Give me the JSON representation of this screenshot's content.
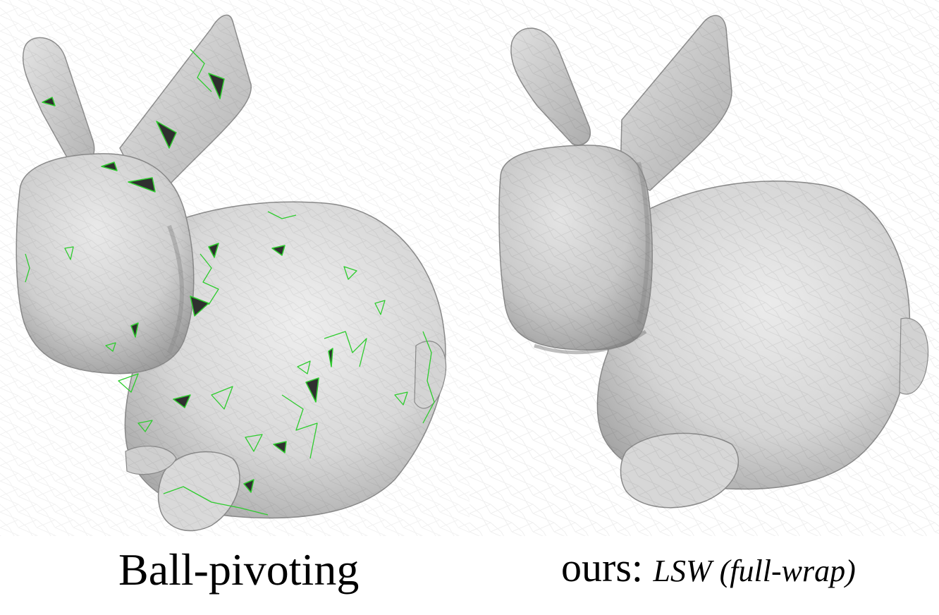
{
  "figure": {
    "left_panel": {
      "caption": "Ball-pivoting"
    },
    "right_panel": {
      "caption_prefix": "ours:",
      "caption_method": "LSW (full-wrap)"
    }
  },
  "colors": {
    "mesh_light": "#e6e6e6",
    "mesh_mid": "#cfcfcf",
    "mesh_dark": "#a7a7a7",
    "hole_fill": "#2f2f2f",
    "hole_outline": "#2ecc2e",
    "background": "#ffffff"
  }
}
